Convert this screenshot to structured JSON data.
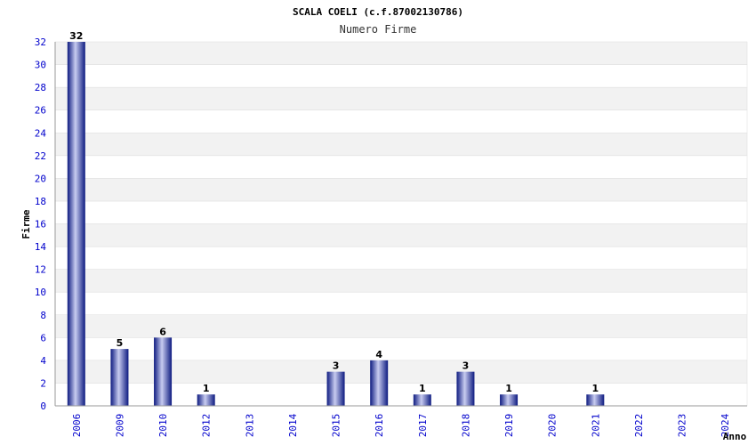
{
  "chart_data": {
    "type": "bar",
    "title": "SCALA COELI (c.f.87002130786)",
    "subtitle": "Numero Firme",
    "xlabel": "Anno",
    "ylabel": "Firme",
    "ylim": [
      0,
      32
    ],
    "yticks": [
      0,
      2,
      4,
      6,
      8,
      10,
      12,
      14,
      16,
      18,
      20,
      22,
      24,
      26,
      28,
      30,
      32
    ],
    "grid": "horizontal bands",
    "categories": [
      "2006",
      "2009",
      "2010",
      "2012",
      "2013",
      "2014",
      "2015",
      "2016",
      "2017",
      "2018",
      "2019",
      "2020",
      "2021",
      "2022",
      "2023",
      "2024"
    ],
    "values": [
      32,
      5,
      6,
      1,
      0,
      0,
      3,
      4,
      1,
      3,
      1,
      0,
      1,
      0,
      0,
      0
    ],
    "colors": {
      "bar_dark": "#0d1a80",
      "bar_light": "#c8ccf0",
      "tick": "#0000cc",
      "band": "#f2f2f2"
    }
  }
}
